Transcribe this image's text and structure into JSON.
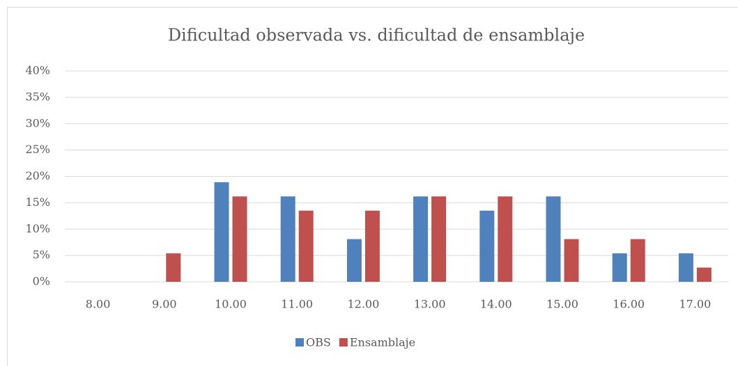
{
  "chart_data": {
    "type": "bar",
    "title": "Dificultad observada vs. dificultad de ensamblaje",
    "categories": [
      "8.00",
      "9.00",
      "10.00",
      "11.00",
      "12.00",
      "13.00",
      "14.00",
      "15.00",
      "16.00",
      "17.00"
    ],
    "series": [
      {
        "name": "OBS",
        "color": "#4f81bd",
        "values": [
          0,
          0,
          18.9,
          16.2,
          8.1,
          16.2,
          13.5,
          16.2,
          5.4,
          5.4
        ]
      },
      {
        "name": "Ensamblaje",
        "color": "#c0504d",
        "values": [
          0,
          5.4,
          16.2,
          13.5,
          13.5,
          16.2,
          16.2,
          8.1,
          8.1,
          2.7
        ]
      }
    ],
    "ylim": [
      0,
      40
    ],
    "yticks": [
      {
        "value": 0,
        "label": "0%"
      },
      {
        "value": 5,
        "label": "5%"
      },
      {
        "value": 10,
        "label": "10%"
      },
      {
        "value": 15,
        "label": "15%"
      },
      {
        "value": 20,
        "label": "20%"
      },
      {
        "value": 25,
        "label": "25%"
      },
      {
        "value": 30,
        "label": "30%"
      },
      {
        "value": 35,
        "label": "35%"
      },
      {
        "value": 40,
        "label": "40%"
      }
    ],
    "grid": true,
    "legend": "bottom"
  }
}
